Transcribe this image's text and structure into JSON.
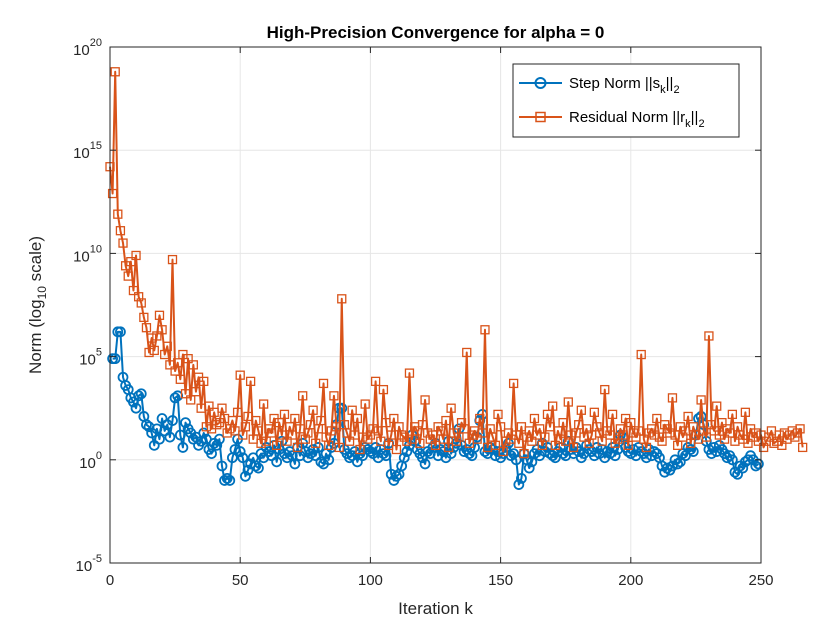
{
  "chart_data": {
    "type": "line",
    "title": "High-Precision Convergence for alpha = 0",
    "xlabel": "Iteration k",
    "ylabel": {
      "main": "Norm (log",
      "sub": "10",
      "tail": " scale)"
    },
    "xlim": [
      0,
      250
    ],
    "ylim": [
      1e-05,
      1e+20
    ],
    "yscale": "log",
    "grid": true,
    "legend_position": "top-right",
    "x_ticks": [
      0,
      50,
      100,
      150,
      200,
      250
    ],
    "y_ticks": [
      {
        "value": 1e-05,
        "base": "10",
        "exp": "-5"
      },
      {
        "value": 1.0,
        "base": "10",
        "exp": "0"
      },
      {
        "value": 100000.0,
        "base": "10",
        "exp": "5"
      },
      {
        "value": 10000000000.0,
        "base": "10",
        "exp": "10"
      },
      {
        "value": 1000000000000000.0,
        "base": "10",
        "exp": "15"
      },
      {
        "value": 1e+20,
        "base": "10",
        "exp": "20"
      }
    ],
    "series": [
      {
        "name": "Step Norm ||s_k||_2",
        "legend": {
          "main": "Step Norm ||s",
          "sub": "k",
          "mid": "||",
          "sub2": "2"
        },
        "marker": "circle",
        "color": "#0072BD",
        "x_start": 1,
        "log10_values": [
          4.9,
          4.9,
          6.2,
          6.2,
          4.0,
          3.6,
          3.4,
          3.0,
          2.8,
          2.5,
          3.1,
          3.2,
          2.1,
          1.7,
          1.6,
          1.3,
          0.7,
          1.5,
          1.0,
          2.0,
          1.4,
          1.7,
          1.1,
          1.9,
          3.0,
          3.1,
          1.2,
          0.6,
          1.8,
          1.5,
          1.3,
          1.0,
          1.1,
          0.7,
          0.9,
          1.3,
          1.0,
          0.5,
          0.3,
          0.8,
          0.7,
          1.0,
          -0.3,
          -1.0,
          -0.9,
          -1.0,
          0.1,
          0.5,
          1.0,
          0.4,
          0.1,
          -0.8,
          -0.5,
          -0.2,
          0.1,
          -0.3,
          -0.4,
          0.3,
          0.1,
          0.6,
          0.4,
          0.2,
          0.7,
          -0.1,
          0.5,
          0.9,
          0.3,
          0.1,
          0.4,
          0.2,
          -0.2,
          0.6,
          0.2,
          0.8,
          0.4,
          0.1,
          0.3,
          0.5,
          0.2,
          0.6,
          -0.1,
          -0.2,
          0.3,
          0.0,
          0.6,
          0.8,
          1.7,
          2.5,
          2.5,
          0.5,
          0.3,
          0.1,
          0.2,
          0.4,
          -0.1,
          0.3,
          0.2,
          0.6,
          0.5,
          0.4,
          0.3,
          0.6,
          0.1,
          0.5,
          0.3,
          0.2,
          0.8,
          -0.7,
          -1.0,
          -0.8,
          -0.7,
          -0.3,
          0.1,
          0.4,
          0.7,
          1.2,
          0.9,
          0.5,
          0.3,
          0.1,
          -0.2,
          0.4,
          0.3,
          0.6,
          0.8,
          0.2,
          0.5,
          0.4,
          0.1,
          0.9,
          0.3,
          0.6,
          0.8,
          1.5,
          0.7,
          0.4,
          0.5,
          0.3,
          0.2,
          0.6,
          1.1,
          1.9,
          2.2,
          0.4,
          0.3,
          0.6,
          0.5,
          0.2,
          0.4,
          0.1,
          0.3,
          0.6,
          0.8,
          0.2,
          0.3,
          0.0,
          -1.2,
          -0.9,
          0.3,
          0.0,
          -0.4,
          -0.1,
          0.3,
          0.5,
          0.2,
          0.8,
          0.4,
          0.6,
          0.3,
          0.2,
          0.1,
          0.4,
          0.6,
          0.3,
          0.2,
          0.9,
          0.5,
          0.3,
          0.6,
          0.4,
          0.1,
          0.3,
          0.7,
          0.5,
          0.4,
          0.2,
          0.6,
          0.3,
          0.5,
          0.1,
          0.4,
          0.3,
          0.6,
          0.2,
          0.5,
          1.2,
          1.1,
          0.6,
          0.4,
          0.3,
          0.5,
          0.2,
          0.6,
          0.4,
          0.3,
          0.1,
          0.5,
          0.2,
          0.4,
          0.3,
          0.1,
          -0.3,
          -0.6,
          -0.4,
          -0.5,
          -0.3,
          0.0,
          -0.2,
          -0.1,
          0.3,
          0.2,
          0.6,
          0.5,
          0.4,
          1.2,
          2.0,
          2.1,
          1.7,
          0.9,
          0.5,
          0.3,
          0.6,
          0.4,
          0.7,
          0.5,
          0.3,
          0.1,
          0.2,
          0.0,
          -0.6,
          -0.7,
          -0.3,
          -0.4,
          -0.1,
          0.0,
          0.2,
          0.0,
          -0.3,
          -0.2
        ],
        "data_note": "values are log10 of the norm, one per iteration k"
      },
      {
        "name": "Residual Norm ||r_k||_2",
        "legend": {
          "main": "Residual Norm ||r",
          "sub": "k",
          "mid": "||",
          "sub2": "2"
        },
        "marker": "square",
        "color": "#D95319",
        "x_start": 0,
        "log10_values": [
          14.2,
          12.9,
          18.8,
          11.9,
          11.1,
          10.5,
          9.4,
          8.9,
          9.6,
          8.2,
          9.9,
          7.9,
          7.6,
          6.9,
          6.4,
          5.2,
          5.9,
          5.3,
          6.0,
          7.0,
          6.3,
          5.1,
          5.5,
          4.6,
          9.7,
          4.3,
          4.7,
          3.9,
          5.1,
          3.2,
          4.9,
          2.9,
          4.6,
          3.3,
          4.0,
          2.5,
          3.8,
          1.6,
          2.6,
          1.5,
          2.3,
          1.7,
          1.8,
          2.5,
          2.0,
          1.3,
          1.5,
          1.9,
          1.4,
          2.3,
          4.1,
          1.2,
          1.6,
          2.1,
          3.8,
          1.0,
          1.9,
          1.4,
          0.8,
          2.7,
          0.9,
          1.5,
          1.3,
          2.0,
          0.7,
          1.8,
          1.2,
          2.2,
          0.9,
          1.6,
          1.2,
          2.0,
          0.6,
          1.5,
          3.1,
          1.0,
          1.3,
          1.7,
          2.4,
          0.8,
          1.5,
          1.9,
          3.7,
          1.1,
          0.7,
          1.4,
          3.1,
          1.6,
          0.6,
          7.8,
          1.7,
          1.3,
          0.9,
          2.4,
          1.2,
          2.0,
          0.5,
          1.1,
          2.7,
          1.0,
          1.2,
          1.5,
          3.8,
          1.4,
          0.9,
          3.4,
          1.8,
          0.7,
          1.2,
          2.0,
          0.5,
          1.6,
          1.2,
          1.1,
          0.9,
          4.2,
          1.0,
          1.6,
          1.4,
          0.8,
          1.7,
          2.9,
          1.3,
          1.0,
          1.2,
          0.7,
          1.6,
          1.4,
          1.0,
          1.9,
          0.6,
          2.5,
          1.3,
          0.9,
          1.1,
          1.8,
          1.5,
          5.2,
          0.8,
          1.2,
          1.4,
          1.0,
          2.0,
          1.3,
          6.3,
          0.6,
          1.5,
          1.1,
          0.7,
          2.2,
          1.6,
          0.4,
          0.9,
          1.3,
          1.0,
          3.7,
          1.2,
          0.8,
          1.6,
          0.3,
          1.1,
          1.4,
          0.9,
          2.0,
          1.2,
          1.5,
          0.7,
          1.1,
          2.2,
          1.6,
          2.6,
          0.7,
          1.4,
          1.0,
          1.8,
          0.9,
          2.8,
          1.2,
          0.6,
          1.3,
          1.7,
          2.4,
          1.1,
          1.5,
          0.8,
          1.2,
          2.3,
          1.6,
          1.3,
          0.9,
          3.4,
          1.4,
          1.2,
          2.2,
          0.8,
          1.0,
          1.5,
          1.2,
          2.0,
          0.7,
          1.8,
          1.3,
          1.1,
          1.4,
          5.1,
          1.0,
          0.6,
          1.3,
          1.5,
          1.2,
          2.0,
          1.1,
          0.9,
          1.7,
          1.5,
          1.3,
          3.0,
          1.2,
          0.7,
          1.6,
          1.1,
          1.4,
          2.1,
          0.8,
          1.6,
          1.2,
          1.0,
          2.9,
          1.4,
          1.1,
          6.0,
          1.7,
          1.4,
          2.6,
          1.2,
          1.8,
          1.0,
          1.5,
          1.3,
          2.2,
          0.9,
          1.6,
          1.2,
          1.0,
          2.3,
          0.8,
          1.5,
          1.1,
          1.3,
          0.9,
          1.2,
          0.6,
          0.9,
          1.1,
          1.4,
          0.8,
          0.9,
          1.2,
          0.7,
          1.3,
          1.0,
          1.2,
          1.4,
          1.1,
          1.3,
          1.5,
          0.6
        ]
      }
    ]
  }
}
